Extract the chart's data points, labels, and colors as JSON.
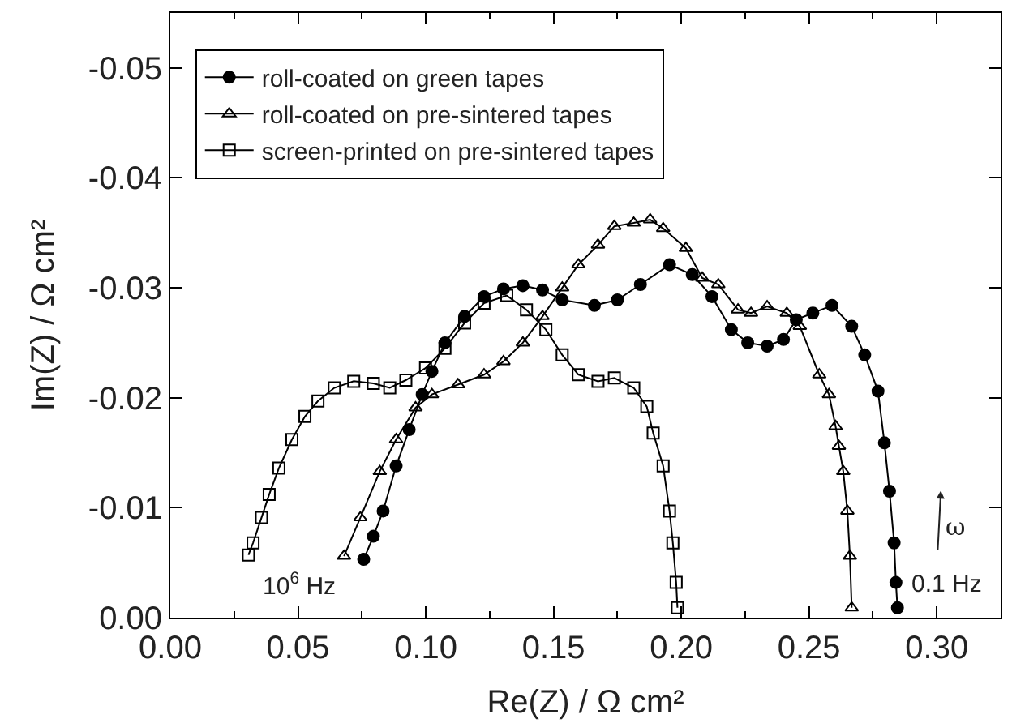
{
  "chart_data": {
    "type": "line",
    "xlabel": "Re(Z) / Ω cm²",
    "ylabel": "Im(Z) / Ω cm²",
    "xlim": [
      0,
      0.325
    ],
    "ylim": [
      0,
      -0.055
    ],
    "xticks": [
      {
        "value": 0,
        "label": "0.00"
      },
      {
        "value": 0.05,
        "label": "0.05"
      },
      {
        "value": 0.1,
        "label": "0.10"
      },
      {
        "value": 0.15,
        "label": "0.15"
      },
      {
        "value": 0.2,
        "label": "0.20"
      },
      {
        "value": 0.25,
        "label": "0.25"
      },
      {
        "value": 0.3,
        "label": "0.30"
      }
    ],
    "yticks": [
      {
        "value": 0,
        "label": "0.00"
      },
      {
        "value": -0.01,
        "label": "-0.01"
      },
      {
        "value": -0.02,
        "label": "-0.02"
      },
      {
        "value": -0.03,
        "label": "-0.03"
      },
      {
        "value": -0.04,
        "label": "-0.04"
      },
      {
        "value": -0.05,
        "label": "-0.05"
      }
    ],
    "legend": "top left",
    "annotations": [
      "10$^{6}$ Hz",
      "0.1 Hz",
      "ω"
    ],
    "series": [
      {
        "name": "roll-coated on green tapes",
        "color": "#000000",
        "marker": "circle",
        "line_style": "solid",
        "x": [
          0.0757,
          0.0795,
          0.0833,
          0.0884,
          0.0935,
          0.0986,
          0.1024,
          0.1075,
          0.1152,
          0.1228,
          0.1304,
          0.138,
          0.1457,
          0.1534,
          0.166,
          0.175,
          0.184,
          0.1954,
          0.2043,
          0.212,
          0.2196,
          0.226,
          0.2336,
          0.24,
          0.245,
          0.2515,
          0.259,
          0.2667,
          0.2718,
          0.277,
          0.2795,
          0.2815,
          0.2833,
          0.284,
          0.2846
        ],
        "values": [
          -0.0053,
          -0.0074,
          -0.0097,
          -0.0138,
          -0.0171,
          -0.0203,
          -0.0224,
          -0.025,
          -0.0274,
          -0.0292,
          -0.0299,
          -0.0302,
          -0.0298,
          -0.0289,
          -0.0284,
          -0.0289,
          -0.0303,
          -0.0321,
          -0.0312,
          -0.0292,
          -0.0262,
          -0.025,
          -0.0247,
          -0.0253,
          -0.0271,
          -0.0277,
          -0.0284,
          -0.0265,
          -0.0239,
          -0.0206,
          -0.0159,
          -0.0115,
          -0.0068,
          -0.0032,
          -0.0009
        ]
      },
      {
        "name": "roll-coated on pre-sintered tapes",
        "color": "#000000",
        "marker": "triangle",
        "line_style": "solid",
        "x": [
          0.068,
          0.0744,
          0.082,
          0.0884,
          0.096,
          0.1024,
          0.1126,
          0.1228,
          0.1304,
          0.138,
          0.1457,
          0.1534,
          0.1597,
          0.1674,
          0.1738,
          0.1814,
          0.1878,
          0.1929,
          0.2018,
          0.2082,
          0.2145,
          0.2222,
          0.2273,
          0.2336,
          0.2413,
          0.2464,
          0.254,
          0.2578,
          0.2604,
          0.2617,
          0.2634,
          0.265,
          0.266,
          0.2667
        ],
        "values": [
          -0.0056,
          -0.0091,
          -0.0133,
          -0.0162,
          -0.0191,
          -0.0203,
          -0.0212,
          -0.0221,
          -0.0233,
          -0.025,
          -0.0274,
          -0.03,
          -0.0321,
          -0.0339,
          -0.0356,
          -0.0359,
          -0.0362,
          -0.0354,
          -0.0336,
          -0.0309,
          -0.0303,
          -0.028,
          -0.0277,
          -0.0283,
          -0.0277,
          -0.0265,
          -0.0221,
          -0.0203,
          -0.0174,
          -0.0156,
          -0.0133,
          -0.0097,
          -0.0056,
          -0.0009
        ]
      },
      {
        "name": "screen-printed on pre-sintered tapes",
        "color": "#000000",
        "marker": "square",
        "line_style": "solid",
        "x": [
          0.0306,
          0.0324,
          0.0357,
          0.0387,
          0.0425,
          0.0476,
          0.0527,
          0.0578,
          0.0642,
          0.0718,
          0.0795,
          0.0859,
          0.0922,
          0.0999,
          0.1075,
          0.1152,
          0.1228,
          0.1317,
          0.1394,
          0.147,
          0.1534,
          0.1597,
          0.1674,
          0.1738,
          0.1814,
          0.1865,
          0.189,
          0.1929,
          0.1954,
          0.1967,
          0.198,
          0.1985
        ],
        "values": [
          -0.0057,
          -0.0068,
          -0.0091,
          -0.0112,
          -0.0136,
          -0.0162,
          -0.0183,
          -0.0197,
          -0.0209,
          -0.0215,
          -0.0213,
          -0.0209,
          -0.0216,
          -0.0227,
          -0.0245,
          -0.0268,
          -0.0286,
          -0.0293,
          -0.028,
          -0.0262,
          -0.0239,
          -0.0221,
          -0.0215,
          -0.0218,
          -0.0209,
          -0.0192,
          -0.0168,
          -0.0138,
          -0.0097,
          -0.0068,
          -0.0032,
          -0.0009
        ]
      }
    ]
  }
}
